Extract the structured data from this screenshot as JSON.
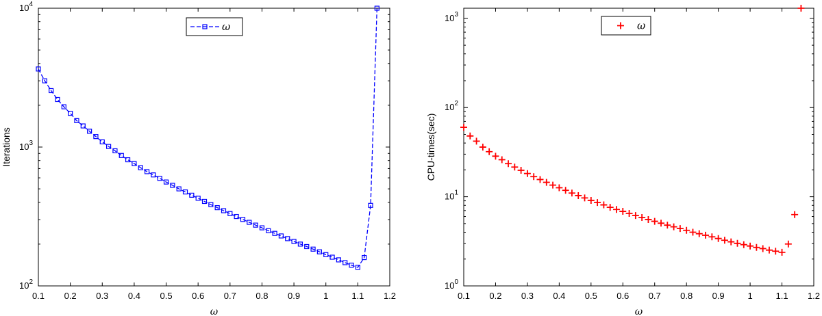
{
  "chart_data": [
    {
      "type": "line",
      "xlabel": "ω",
      "ylabel": "Iterations",
      "xlim": [
        0.1,
        1.2
      ],
      "ylim": [
        100,
        10000
      ],
      "yscale": "log",
      "grid": false,
      "legend": "top-center",
      "color": "#0000ff",
      "marker": "square",
      "line_style": "dashed",
      "x_ticks": [
        "0.1",
        "0.2",
        "0.3",
        "0.4",
        "0.5",
        "0.6",
        "0.7",
        "0.8",
        "0.9",
        "1",
        "1.1",
        "1.2"
      ],
      "y_ticks": [
        {
          "base": "10",
          "exp": "2"
        },
        {
          "base": "10",
          "exp": "3"
        },
        {
          "base": "10",
          "exp": "4"
        }
      ],
      "series": [
        {
          "name": "ω",
          "x": [
            0.1,
            0.12,
            0.14,
            0.16,
            0.18,
            0.2,
            0.22,
            0.24,
            0.26,
            0.28,
            0.3,
            0.32,
            0.34,
            0.36,
            0.38,
            0.4,
            0.42,
            0.44,
            0.46,
            0.48,
            0.5,
            0.52,
            0.54,
            0.56,
            0.58,
            0.6,
            0.62,
            0.64,
            0.66,
            0.68,
            0.7,
            0.72,
            0.74,
            0.76,
            0.78,
            0.8,
            0.82,
            0.84,
            0.86,
            0.88,
            0.9,
            0.92,
            0.94,
            0.96,
            0.98,
            1.0,
            1.02,
            1.04,
            1.06,
            1.08,
            1.1,
            1.12,
            1.14,
            1.16
          ],
          "y": [
            3650,
            3000,
            2550,
            2200,
            1950,
            1750,
            1550,
            1420,
            1300,
            1190,
            1090,
            1010,
            940,
            870,
            810,
            760,
            710,
            665,
            630,
            595,
            560,
            530,
            500,
            475,
            450,
            428,
            406,
            385,
            366,
            348,
            332,
            316,
            301,
            287,
            274,
            262,
            250,
            239,
            229,
            219,
            209,
            200,
            192,
            184,
            176,
            168,
            161,
            154,
            147,
            141,
            136,
            160,
            380,
            10000
          ]
        }
      ]
    },
    {
      "type": "scatter",
      "xlabel": "ω",
      "ylabel": "CPU-times(sec)",
      "xlim": [
        0.1,
        1.2
      ],
      "ylim": [
        1,
        1300
      ],
      "yscale": "log",
      "grid": false,
      "legend": "top-center",
      "color": "#ff0000",
      "marker": "plus",
      "x_ticks": [
        "0.1",
        "0.2",
        "0.3",
        "0.4",
        "0.5",
        "0.6",
        "0.7",
        "0.8",
        "0.9",
        "1",
        "1.1",
        "1.2"
      ],
      "y_ticks": [
        {
          "base": "10",
          "exp": "0"
        },
        {
          "base": "10",
          "exp": "1"
        },
        {
          "base": "10",
          "exp": "2"
        },
        {
          "base": "10",
          "exp": "3"
        }
      ],
      "series": [
        {
          "name": "ω",
          "x": [
            0.1,
            0.12,
            0.14,
            0.16,
            0.18,
            0.2,
            0.22,
            0.24,
            0.26,
            0.28,
            0.3,
            0.32,
            0.34,
            0.36,
            0.38,
            0.4,
            0.42,
            0.44,
            0.46,
            0.48,
            0.5,
            0.52,
            0.54,
            0.56,
            0.58,
            0.6,
            0.62,
            0.64,
            0.66,
            0.68,
            0.7,
            0.72,
            0.74,
            0.76,
            0.78,
            0.8,
            0.82,
            0.84,
            0.86,
            0.88,
            0.9,
            0.92,
            0.94,
            0.96,
            0.98,
            1.0,
            1.02,
            1.04,
            1.06,
            1.08,
            1.1,
            1.12,
            1.14,
            1.16
          ],
          "y": [
            60,
            48,
            42,
            36,
            32,
            28.5,
            26,
            23.5,
            21.5,
            19.8,
            18.2,
            16.8,
            15.6,
            14.5,
            13.5,
            12.6,
            11.8,
            11.0,
            10.3,
            9.7,
            9.1,
            8.6,
            8.1,
            7.6,
            7.2,
            6.85,
            6.5,
            6.15,
            5.85,
            5.55,
            5.3,
            5.05,
            4.8,
            4.6,
            4.4,
            4.2,
            4.0,
            3.85,
            3.7,
            3.55,
            3.4,
            3.25,
            3.12,
            3.0,
            2.9,
            2.8,
            2.7,
            2.62,
            2.52,
            2.45,
            2.38,
            2.95,
            6.3,
            1300
          ]
        }
      ]
    }
  ]
}
